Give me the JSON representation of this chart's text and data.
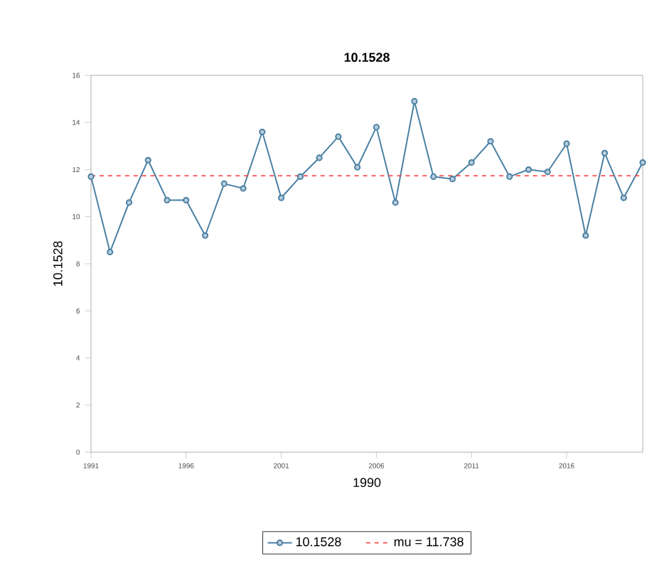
{
  "chart_data": {
    "type": "line",
    "title": "10.1528",
    "xlabel": "1990",
    "ylabel": "10.1528",
    "x": [
      1991,
      1992,
      1993,
      1994,
      1995,
      1996,
      1997,
      1998,
      1999,
      2000,
      2001,
      2002,
      2003,
      2004,
      2005,
      2006,
      2007,
      2008,
      2009,
      2010,
      2011,
      2012,
      2013,
      2014,
      2015,
      2016,
      2017,
      2018,
      2019,
      2020
    ],
    "series": [
      {
        "name": "10.1528",
        "color": "#4a80a3",
        "values": [
          11.7,
          8.5,
          10.6,
          12.4,
          10.7,
          10.7,
          9.2,
          11.4,
          11.2,
          13.6,
          10.8,
          11.7,
          12.5,
          13.4,
          12.1,
          13.8,
          10.6,
          14.9,
          11.7,
          11.6,
          12.3,
          13.2,
          11.7,
          12.0,
          11.9,
          13.1,
          9.2,
          12.7,
          10.8,
          12.3
        ]
      }
    ],
    "ref_lines": [
      {
        "axis": "y",
        "value": 11.738,
        "label": "mu = 11.738",
        "color": "#ff3333",
        "line_style": "dashed"
      }
    ],
    "xlim": [
      1991,
      2020
    ],
    "ylim": [
      0,
      16
    ],
    "xticks": [
      1991,
      1996,
      2001,
      2006,
      2011,
      2016
    ],
    "yticks": [
      0,
      2,
      4,
      6,
      8,
      10,
      12,
      14,
      16
    ],
    "marker": "circle",
    "line_style": "solid",
    "grid": false,
    "legend": "bottom"
  }
}
